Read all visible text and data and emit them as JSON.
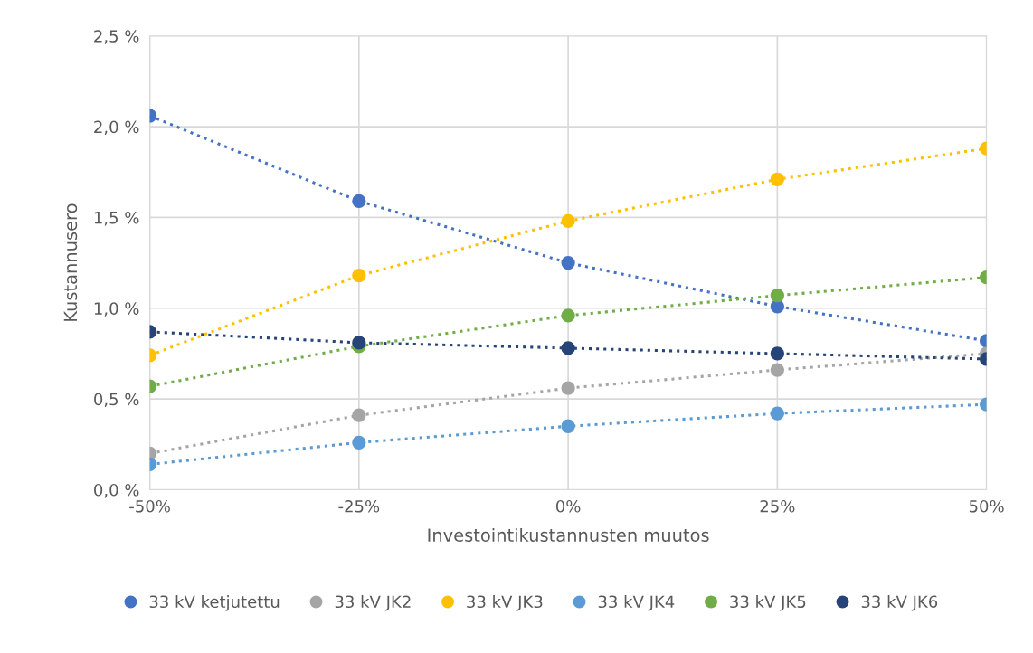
{
  "chart_data": {
    "type": "line",
    "xlabel": "Investointikustannusten muutos",
    "ylabel": "Kustannusero",
    "categories": [
      "-50%",
      "-25%",
      "0%",
      "25%",
      "50%"
    ],
    "series": [
      {
        "name": "33 kV ketjutettu",
        "color": "#4472c4",
        "values": [
          2.06,
          1.59,
          1.25,
          1.01,
          0.82
        ]
      },
      {
        "name": "33 kV JK2",
        "color": "#a5a5a5",
        "values": [
          0.2,
          0.41,
          0.56,
          0.66,
          0.75
        ]
      },
      {
        "name": "33 kV JK3",
        "color": "#ffc000",
        "values": [
          0.74,
          1.18,
          1.48,
          1.71,
          1.88
        ]
      },
      {
        "name": "33 kV JK4",
        "color": "#5b9bd5",
        "values": [
          0.14,
          0.26,
          0.35,
          0.42,
          0.47
        ]
      },
      {
        "name": "33 kV JK5",
        "color": "#70ad47",
        "values": [
          0.57,
          0.79,
          0.96,
          1.07,
          1.17
        ]
      },
      {
        "name": "33 kV JK6",
        "color": "#264478",
        "values": [
          0.87,
          0.81,
          0.78,
          0.75,
          0.72
        ]
      }
    ],
    "ylim": [
      0,
      2.5
    ],
    "yticks": [
      {
        "value": 0,
        "label": "0,0 %"
      },
      {
        "value": 0.5,
        "label": "0,5 %"
      },
      {
        "value": 1.0,
        "label": "1,0 %"
      },
      {
        "value": 1.5,
        "label": "1,5 %"
      },
      {
        "value": 2.0,
        "label": "2,0 %"
      },
      {
        "value": 2.5,
        "label": "2,5 %"
      }
    ],
    "grid": true,
    "legend": "bottom",
    "marker": "circle",
    "line_style": "dotted"
  }
}
